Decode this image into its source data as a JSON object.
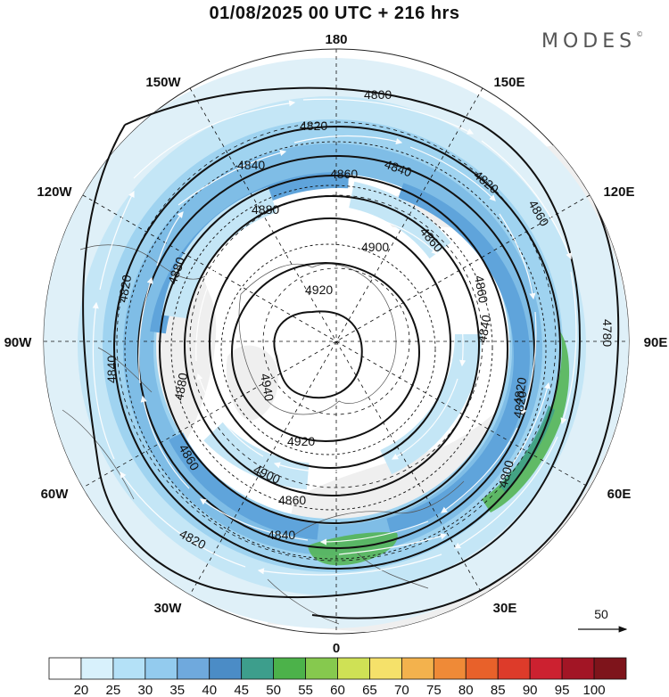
{
  "title": "01/08/2025  00 UTC  + 216 hrs",
  "logo": {
    "text": "MODES",
    "mark": "©"
  },
  "map": {
    "projection": "north polar stereographic",
    "longitude_labels": [
      {
        "text": "180",
        "lon": 180
      },
      {
        "text": "150E",
        "lon": 150
      },
      {
        "text": "120E",
        "lon": 120
      },
      {
        "text": "90E",
        "lon": 90
      },
      {
        "text": "60E",
        "lon": 60
      },
      {
        "text": "30E",
        "lon": 30
      },
      {
        "text": "0",
        "lon": 0
      },
      {
        "text": "30W",
        "lon": -30
      },
      {
        "text": "60W",
        "lon": -60
      },
      {
        "text": "90W",
        "lon": -90
      },
      {
        "text": "120W",
        "lon": -120
      },
      {
        "text": "150W",
        "lon": -150
      }
    ],
    "contour_labels": [
      "4800",
      "4820",
      "4840",
      "4860",
      "4880",
      "4900",
      "4920",
      "4940",
      "4780",
      "4820",
      "4840",
      "4860",
      "4880",
      "4900",
      "4920",
      "4840",
      "4860",
      "4880",
      "4820",
      "4860",
      "4840",
      "4820",
      "4860",
      "4820",
      "4840",
      "4860",
      "4820",
      "4800"
    ],
    "colors": {
      "land_bg": "#f2f2f2",
      "ocean_bg": "#ffffff",
      "wind_20": "#dff0f8",
      "wind_25": "#c4e6f6",
      "wind_30": "#9fd3f0",
      "wind_35": "#7fbde6",
      "wind_40": "#5fa4db",
      "wind_50": "#4aa36a",
      "wind_55": "#62bb52",
      "wind_60": "#86c94e"
    }
  },
  "vector_reference": {
    "value": "50"
  },
  "colorbar": {
    "labels": [
      "20",
      "25",
      "30",
      "35",
      "40",
      "45",
      "50",
      "55",
      "60",
      "65",
      "70",
      "75",
      "80",
      "85",
      "90",
      "95",
      "100"
    ],
    "colors": [
      "#ffffff",
      "#d8f1fc",
      "#b4e1f7",
      "#93cbee",
      "#6fa9dd",
      "#4b8cc6",
      "#3d9e8c",
      "#4cb24a",
      "#86c94e",
      "#cfe155",
      "#f5e16a",
      "#f3b24d",
      "#ef8a37",
      "#e8612a",
      "#dd3b2a",
      "#cc2130",
      "#a21525",
      "#7e141b"
    ]
  }
}
